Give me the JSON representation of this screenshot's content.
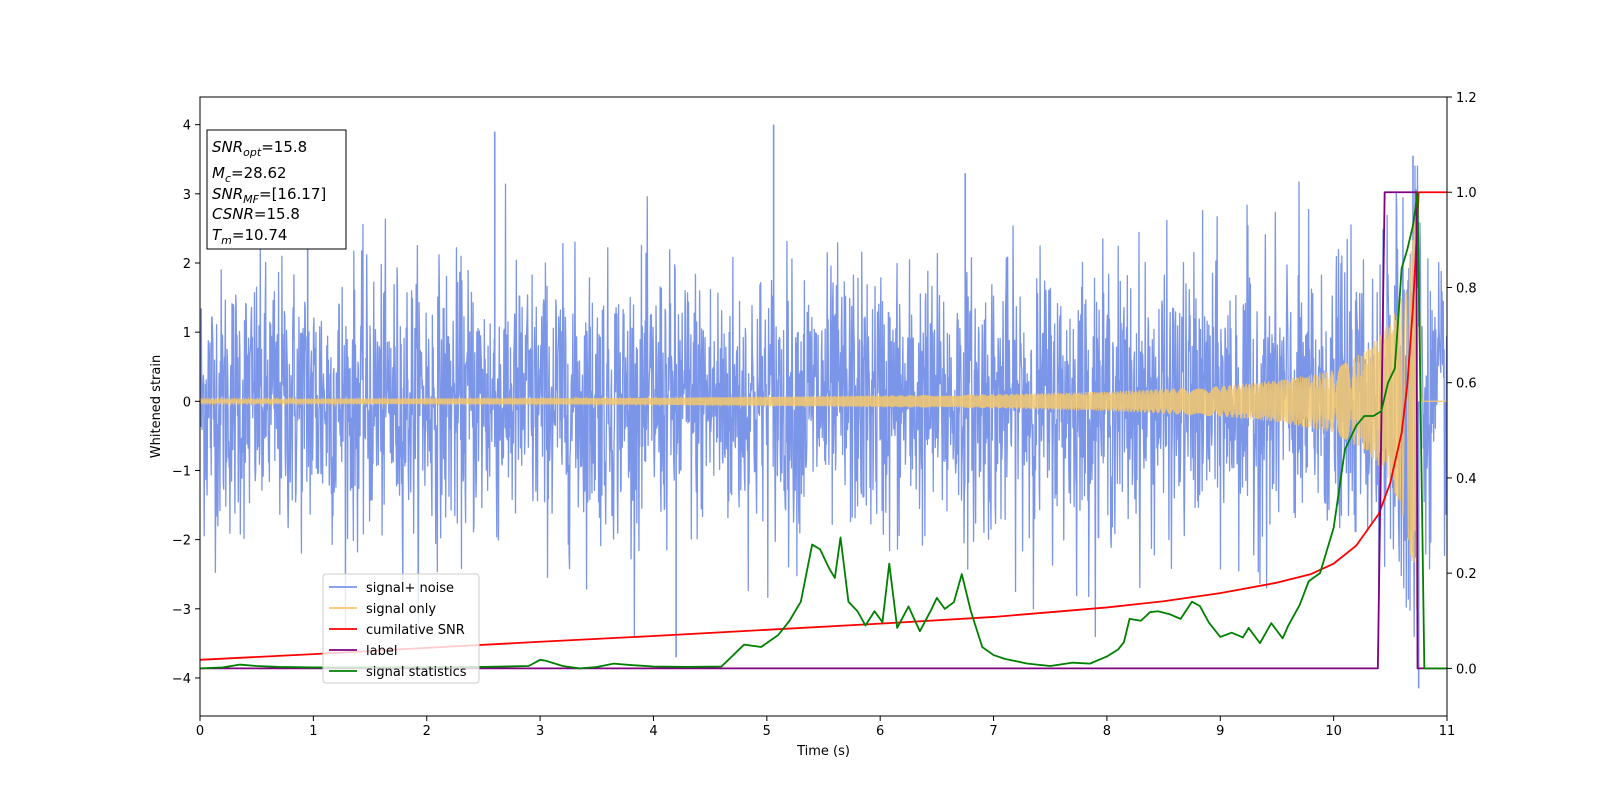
{
  "chart_data": {
    "type": "line",
    "xlabel": "Time (s)",
    "ylabel_left": "Whitened strain",
    "ylabel_right": "",
    "xlim": [
      0,
      11
    ],
    "ylim_left": [
      -4.55,
      4.4
    ],
    "ylim_right": [
      -0.1,
      1.2
    ],
    "x_ticks": [
      0,
      1,
      2,
      3,
      4,
      5,
      6,
      7,
      8,
      9,
      10,
      11
    ],
    "y_ticks_left": [
      -4,
      -3,
      -2,
      -1,
      0,
      1,
      2,
      3,
      4
    ],
    "y_ticks_right": [
      0.0,
      0.2,
      0.4,
      0.6,
      0.8,
      1.0,
      1.2
    ],
    "grid": false,
    "legend_position": "lower-left",
    "legend": [
      {
        "label": "signal+ noise",
        "color": "#7b95e8"
      },
      {
        "label": "signal only",
        "color": "#f5c86c"
      },
      {
        "label": "cumilative SNR",
        "color": "#ff0000"
      },
      {
        "label": "label",
        "color": "#800080"
      },
      {
        "label": "signal statistics",
        "color": "#008000"
      }
    ],
    "info_box": [
      {
        "base": "SNR",
        "sub": "opt",
        "value": "=15.8"
      },
      {
        "base": "M",
        "sub": "c",
        "value": "=28.62"
      },
      {
        "base": "SNR",
        "sub": "MF",
        "value": "=[16.17]"
      },
      {
        "base": "CSNR",
        "sub": "",
        "value": "=15.8"
      },
      {
        "base": "T",
        "sub": "m",
        "value": "=10.74"
      }
    ],
    "series": [
      {
        "name": "signal+ noise",
        "axis": "left",
        "kind": "noise",
        "color": "#7b95e8",
        "std": 0.95,
        "peak_x": [
          0.95,
          2.6,
          4.2,
          5.06,
          6.75,
          10.7,
          10.75
        ],
        "peak_y": [
          3.35,
          3.9,
          -3.7,
          4.0,
          3.3,
          3.55,
          -4.15
        ]
      },
      {
        "name": "signal only",
        "axis": "left",
        "kind": "chirp",
        "color": "#f5c86c",
        "t_merger": 10.74,
        "amp_x": [
          0,
          4,
          7,
          8,
          9,
          9.5,
          10,
          10.3,
          10.5,
          10.6,
          10.7,
          10.74,
          10.78,
          11
        ],
        "amp_y": [
          0.03,
          0.05,
          0.1,
          0.14,
          0.22,
          0.3,
          0.45,
          0.75,
          1.15,
          1.6,
          2.4,
          3.2,
          0.0,
          0.0
        ]
      },
      {
        "name": "cumilative SNR",
        "axis": "right",
        "color": "#ff0000",
        "x": [
          0,
          1,
          2,
          3,
          4,
          5,
          6,
          7,
          8,
          8.5,
          9,
          9.5,
          9.8,
          10,
          10.2,
          10.4,
          10.5,
          10.6,
          10.65,
          10.7,
          10.74,
          10.75,
          11
        ],
        "y": [
          0.018,
          0.03,
          0.043,
          0.056,
          0.068,
          0.081,
          0.094,
          0.108,
          0.128,
          0.141,
          0.158,
          0.18,
          0.198,
          0.22,
          0.258,
          0.325,
          0.39,
          0.495,
          0.595,
          0.76,
          0.94,
          1.0,
          1.0
        ]
      },
      {
        "name": "label",
        "axis": "right",
        "color": "#800080",
        "x": [
          0,
          10.39,
          10.45,
          10.73,
          10.74,
          11
        ],
        "y": [
          0,
          0,
          1,
          1,
          0,
          0
        ]
      },
      {
        "name": "signal statistics",
        "axis": "right",
        "color": "#008000",
        "x": [
          0,
          0.2,
          0.35,
          0.5,
          0.7,
          1.0,
          1.5,
          2.0,
          2.5,
          2.9,
          3.0,
          3.05,
          3.2,
          3.35,
          3.5,
          3.65,
          3.8,
          4.0,
          4.3,
          4.6,
          4.8,
          4.95,
          5.1,
          5.2,
          5.3,
          5.4,
          5.47,
          5.55,
          5.6,
          5.65,
          5.72,
          5.8,
          5.87,
          5.95,
          6.02,
          6.08,
          6.15,
          6.25,
          6.35,
          6.45,
          6.5,
          6.57,
          6.65,
          6.72,
          6.8,
          6.9,
          7.0,
          7.1,
          7.3,
          7.5,
          7.7,
          7.85,
          8.0,
          8.1,
          8.15,
          8.2,
          8.3,
          8.38,
          8.45,
          8.55,
          8.65,
          8.75,
          8.82,
          8.9,
          9.0,
          9.1,
          9.2,
          9.25,
          9.35,
          9.45,
          9.55,
          9.6,
          9.7,
          9.78,
          9.88,
          10.0,
          10.1,
          10.2,
          10.27,
          10.35,
          10.42,
          10.48,
          10.54,
          10.6,
          10.65,
          10.7,
          10.74,
          10.8,
          11.0
        ],
        "y": [
          0.0,
          0.002,
          0.008,
          0.005,
          0.003,
          0.002,
          0.002,
          0.002,
          0.003,
          0.005,
          0.018,
          0.016,
          0.005,
          0.0,
          0.003,
          0.01,
          0.007,
          0.004,
          0.003,
          0.004,
          0.05,
          0.045,
          0.07,
          0.1,
          0.14,
          0.26,
          0.25,
          0.21,
          0.19,
          0.275,
          0.14,
          0.12,
          0.09,
          0.12,
          0.097,
          0.22,
          0.085,
          0.13,
          0.078,
          0.123,
          0.148,
          0.125,
          0.139,
          0.198,
          0.12,
          0.045,
          0.028,
          0.02,
          0.01,
          0.005,
          0.012,
          0.01,
          0.025,
          0.04,
          0.055,
          0.104,
          0.1,
          0.118,
          0.12,
          0.114,
          0.104,
          0.14,
          0.131,
          0.096,
          0.066,
          0.075,
          0.065,
          0.085,
          0.053,
          0.095,
          0.063,
          0.09,
          0.133,
          0.183,
          0.2,
          0.295,
          0.46,
          0.51,
          0.53,
          0.53,
          0.54,
          0.6,
          0.63,
          0.84,
          0.88,
          0.93,
          1.0,
          0.0,
          0.0
        ]
      }
    ]
  }
}
